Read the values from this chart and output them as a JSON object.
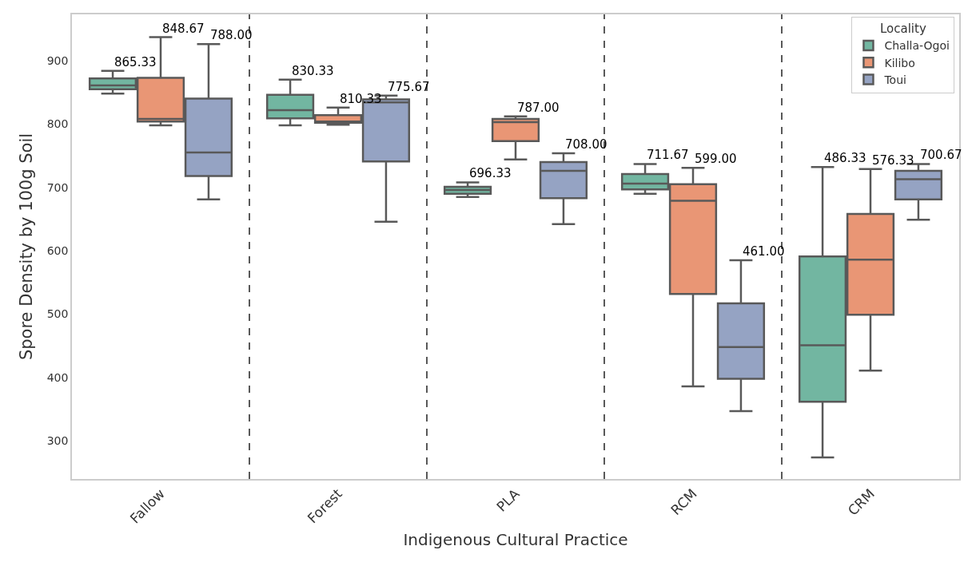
{
  "chart_data": {
    "type": "box",
    "xlabel": "Indigenous Cultural Practice",
    "ylabel": "Spore Density by 100g Soil",
    "legend_title": "Locality",
    "legend": "top right",
    "grid": false,
    "categories": [
      "Fallow",
      "Forest",
      "PLA",
      "RCM",
      "CRM"
    ],
    "ylim": [
      240,
      973
    ],
    "yticks": [
      300,
      400,
      500,
      600,
      700,
      800,
      900
    ],
    "series": [
      {
        "name": "Challa-Ogoi",
        "color": "#72b6a1",
        "value_labels": [
          "865.33",
          "830.33",
          "696.33",
          "711.67",
          "486.33"
        ],
        "boxes": [
          {
            "low": 848,
            "q1": 855,
            "median": 861,
            "q3": 872,
            "high": 884
          },
          {
            "low": 798,
            "q1": 809,
            "median": 822,
            "q3": 846,
            "high": 870
          },
          {
            "low": 685,
            "q1": 690,
            "median": 696,
            "q3": 701,
            "high": 708
          },
          {
            "low": 690,
            "q1": 697,
            "median": 706,
            "q3": 721,
            "high": 737
          },
          {
            "low": 274,
            "q1": 362,
            "median": 451,
            "q3": 591,
            "high": 732
          }
        ]
      },
      {
        "name": "Kilibo",
        "color": "#e99675",
        "value_labels": [
          "848.67",
          "810.33",
          "787.00",
          "599.00",
          "576.33"
        ],
        "boxes": [
          {
            "low": 798,
            "q1": 804,
            "median": 808,
            "q3": 873,
            "high": 937
          },
          {
            "low": 799,
            "q1": 802,
            "median": 804,
            "q3": 814,
            "high": 826
          },
          {
            "low": 744,
            "q1": 773,
            "median": 803,
            "q3": 808,
            "high": 812
          },
          {
            "low": 386,
            "q1": 532,
            "median": 679,
            "q3": 705,
            "high": 731
          },
          {
            "low": 411,
            "q1": 499,
            "median": 586,
            "q3": 658,
            "high": 729
          }
        ]
      },
      {
        "name": "Toui",
        "color": "#95a3c3",
        "value_labels": [
          "788.00",
          "775.67",
          "708.00",
          "461.00",
          "700.67"
        ],
        "boxes": [
          {
            "low": 681,
            "q1": 718,
            "median": 755,
            "q3": 840,
            "high": 926
          },
          {
            "low": 646,
            "q1": 741,
            "median": 834,
            "q3": 839,
            "high": 845
          },
          {
            "low": 642,
            "q1": 683,
            "median": 726,
            "q3": 740,
            "high": 754
          },
          {
            "low": 347,
            "q1": 398,
            "median": 448,
            "q3": 517,
            "high": 585
          },
          {
            "low": 649,
            "q1": 681,
            "median": 713,
            "q3": 726,
            "high": 737
          }
        ]
      }
    ]
  }
}
